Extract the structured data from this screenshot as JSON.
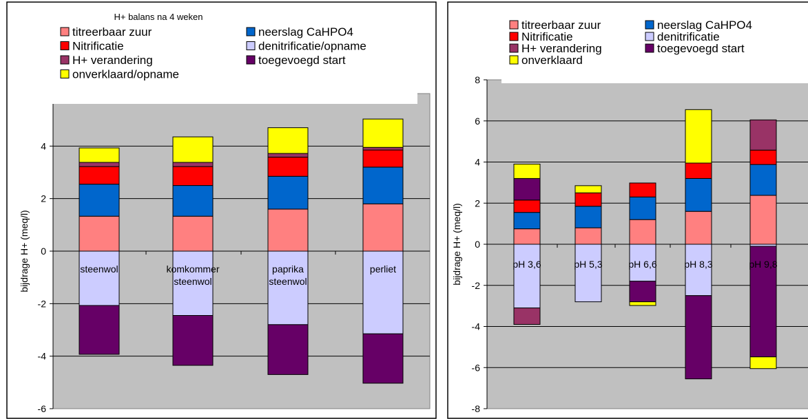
{
  "chart_data": [
    {
      "type": "stacked-bar",
      "title": "H+ balans na 4 weken",
      "ylabel": "bijdrage H+ (meq/l)",
      "ylim": [
        -6,
        6
      ],
      "yticks": [
        -6,
        -4,
        -2,
        0,
        2,
        4,
        6
      ],
      "grid": true,
      "legend_position": "top",
      "categories": [
        "steenwol",
        "komkommer steenwol",
        "paprika steenwol",
        "perliet"
      ],
      "category_lines": [
        [
          "steenwol"
        ],
        [
          "komkommer",
          "steenwol"
        ],
        [
          "paprika",
          "steenwol"
        ],
        [
          "perliet"
        ]
      ],
      "legend": [
        {
          "name": "titreerbaar zuur",
          "color": "#FF8080"
        },
        {
          "name": "neerslag CaHPO4",
          "color": "#0066CC"
        },
        {
          "name": "Nitrificatie",
          "color": "#FF0000"
        },
        {
          "name": "denitrificatie/opname",
          "color": "#CCCCFF"
        },
        {
          "name": "H+ verandering",
          "color": "#993366"
        },
        {
          "name": "toegevoegd start",
          "color": "#660066"
        },
        {
          "name": "onverklaard/opname",
          "color": "#FFFF00"
        }
      ],
      "bars": [
        {
          "segments": [
            [
              0,
              1.33,
              "#FF8080"
            ],
            [
              1.33,
              2.55,
              "#0066CC"
            ],
            [
              2.55,
              3.22,
              "#FF0000"
            ],
            [
              3.22,
              3.38,
              "#993366"
            ],
            [
              3.38,
              3.93,
              "#FFFF00"
            ],
            [
              0,
              -2.07,
              "#CCCCFF"
            ],
            [
              -2.07,
              -3.93,
              "#660066"
            ]
          ]
        },
        {
          "segments": [
            [
              0,
              1.33,
              "#FF8080"
            ],
            [
              1.33,
              2.5,
              "#0066CC"
            ],
            [
              2.5,
              3.22,
              "#FF0000"
            ],
            [
              3.22,
              3.38,
              "#993366"
            ],
            [
              3.38,
              4.35,
              "#FFFF00"
            ],
            [
              0,
              -2.45,
              "#CCCCFF"
            ],
            [
              -2.45,
              -4.35,
              "#660066"
            ]
          ]
        },
        {
          "segments": [
            [
              0,
              1.6,
              "#FF8080"
            ],
            [
              1.6,
              2.85,
              "#0066CC"
            ],
            [
              2.85,
              3.58,
              "#FF0000"
            ],
            [
              3.58,
              3.72,
              "#993366"
            ],
            [
              3.72,
              4.7,
              "#FFFF00"
            ],
            [
              0,
              -2.8,
              "#CCCCFF"
            ],
            [
              -2.8,
              -4.7,
              "#660066"
            ]
          ]
        },
        {
          "segments": [
            [
              0,
              1.8,
              "#FF8080"
            ],
            [
              1.8,
              3.2,
              "#0066CC"
            ],
            [
              3.2,
              3.85,
              "#FF0000"
            ],
            [
              3.85,
              3.95,
              "#993366"
            ],
            [
              3.95,
              5.03,
              "#FFFF00"
            ],
            [
              0,
              -3.15,
              "#CCCCFF"
            ],
            [
              -3.15,
              -5.03,
              "#660066"
            ]
          ]
        }
      ]
    },
    {
      "type": "stacked-bar",
      "title": "",
      "ylabel": "bijdrage H+ (meq/l)",
      "ylim": [
        -8,
        8
      ],
      "yticks": [
        -8,
        -6,
        -4,
        -2,
        0,
        2,
        4,
        6,
        8
      ],
      "grid": true,
      "legend_position": "top",
      "categories": [
        "pH 3,6",
        "pH 5,3",
        "pH 6,6",
        "pH 8,3",
        "pH 9,8"
      ],
      "category_lines": [
        [
          "pH 3,6"
        ],
        [
          "pH 5,3"
        ],
        [
          "pH 6,6"
        ],
        [
          "pH 8,3"
        ],
        [
          "pH 9,8"
        ]
      ],
      "legend": [
        {
          "name": "titreerbaar zuur",
          "color": "#FF8080"
        },
        {
          "name": "neerslag CaHPO4",
          "color": "#0066CC"
        },
        {
          "name": "Nitrificatie",
          "color": "#FF0000"
        },
        {
          "name": "denitrificatie",
          "color": "#CCCCFF"
        },
        {
          "name": "H+ verandering",
          "color": "#993366"
        },
        {
          "name": "toegevoegd start",
          "color": "#660066"
        },
        {
          "name": "onverklaard",
          "color": "#FFFF00"
        }
      ],
      "bars": [
        {
          "segments": [
            [
              0,
              0.75,
              "#FF8080"
            ],
            [
              0.75,
              1.55,
              "#0066CC"
            ],
            [
              1.55,
              2.15,
              "#FF0000"
            ],
            [
              2.15,
              3.2,
              "#660066"
            ],
            [
              3.2,
              3.9,
              "#FFFF00"
            ],
            [
              0,
              -3.1,
              "#CCCCFF"
            ],
            [
              -3.1,
              -3.9,
              "#993366"
            ]
          ]
        },
        {
          "segments": [
            [
              0,
              0.8,
              "#FF8080"
            ],
            [
              0.8,
              1.85,
              "#0066CC"
            ],
            [
              1.85,
              2.5,
              "#FF0000"
            ],
            [
              2.5,
              2.85,
              "#FFFF00"
            ],
            [
              0,
              -2.8,
              "#CCCCFF"
            ]
          ]
        },
        {
          "segments": [
            [
              0,
              1.2,
              "#FF8080"
            ],
            [
              1.2,
              2.3,
              "#0066CC"
            ],
            [
              2.3,
              2.98,
              "#FF0000"
            ],
            [
              0,
              -1.8,
              "#CCCCFF"
            ],
            [
              -1.8,
              -2.8,
              "#660066"
            ],
            [
              -2.8,
              -2.98,
              "#FFFF00"
            ]
          ]
        },
        {
          "segments": [
            [
              0,
              1.6,
              "#FF8080"
            ],
            [
              1.6,
              3.2,
              "#0066CC"
            ],
            [
              3.2,
              3.95,
              "#FF0000"
            ],
            [
              3.95,
              6.55,
              "#FFFF00"
            ],
            [
              0,
              -2.5,
              "#CCCCFF"
            ],
            [
              -2.5,
              -6.55,
              "#660066"
            ]
          ]
        },
        {
          "segments": [
            [
              0,
              2.38,
              "#FF8080"
            ],
            [
              2.38,
              3.88,
              "#0066CC"
            ],
            [
              3.88,
              4.58,
              "#FF0000"
            ],
            [
              4.58,
              6.05,
              "#993366"
            ],
            [
              0,
              -0.1,
              "#CCCCFF"
            ],
            [
              -0.1,
              -5.48,
              "#660066"
            ],
            [
              -5.48,
              -6.05,
              "#FFFF00"
            ]
          ]
        }
      ]
    }
  ]
}
